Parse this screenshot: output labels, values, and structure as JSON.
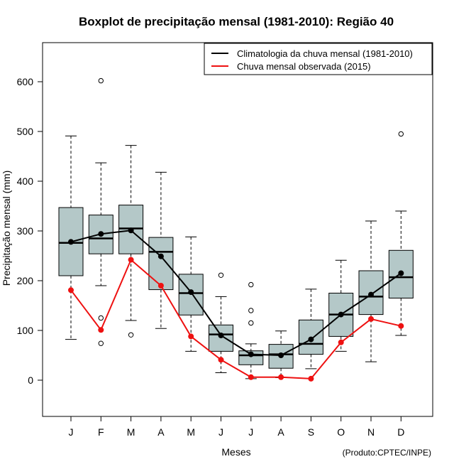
{
  "chart_data": {
    "type": "boxplot",
    "title": "Boxplot de precipitação mensal (1981-2010): Região 40",
    "xlabel": "Meses",
    "ylabel": "Precipitação mensal (mm)",
    "ylim": [
      -75,
      675
    ],
    "yticks": [
      0,
      100,
      200,
      300,
      400,
      500,
      600
    ],
    "categories": [
      "J",
      "F",
      "M",
      "A",
      "M",
      "J",
      "J",
      "A",
      "S",
      "O",
      "N",
      "D"
    ],
    "boxes": [
      {
        "whisker_low": 82,
        "q1": 210,
        "median": 276,
        "q3": 347,
        "whisker_high": 491,
        "outliers": []
      },
      {
        "whisker_low": 190,
        "q1": 254,
        "median": 285,
        "q3": 332,
        "whisker_high": 437,
        "outliers": [
          602,
          125,
          74
        ]
      },
      {
        "whisker_low": 120,
        "q1": 254,
        "median": 305,
        "q3": 352,
        "whisker_high": 472,
        "outliers": [
          91
        ]
      },
      {
        "whisker_low": 104,
        "q1": 182,
        "median": 258,
        "q3": 287,
        "whisker_high": 418,
        "outliers": []
      },
      {
        "whisker_low": 58,
        "q1": 131,
        "median": 175,
        "q3": 213,
        "whisker_high": 288,
        "outliers": []
      },
      {
        "whisker_low": 15,
        "q1": 58,
        "median": 92,
        "q3": 111,
        "whisker_high": 168,
        "outliers": [
          211
        ]
      },
      {
        "whisker_low": 3,
        "q1": 31,
        "median": 50,
        "q3": 59,
        "whisker_high": 73,
        "outliers": [
          192,
          140,
          115
        ]
      },
      {
        "whisker_low": 5,
        "q1": 24,
        "median": 52,
        "q3": 72,
        "whisker_high": 99,
        "outliers": []
      },
      {
        "whisker_low": 23,
        "q1": 52,
        "median": 73,
        "q3": 121,
        "whisker_high": 183,
        "outliers": []
      },
      {
        "whisker_low": 58,
        "q1": 88,
        "median": 132,
        "q3": 175,
        "whisker_high": 241,
        "outliers": []
      },
      {
        "whisker_low": 37,
        "q1": 132,
        "median": 168,
        "q3": 220,
        "whisker_high": 320,
        "outliers": []
      },
      {
        "whisker_low": 90,
        "q1": 165,
        "median": 207,
        "q3": 261,
        "whisker_high": 340,
        "outliers": [
          495
        ]
      }
    ],
    "series": [
      {
        "name": "Climatologia da chuva mensal (1981-2010)",
        "color": "#000000",
        "values": [
          278,
          294,
          301,
          249,
          177,
          90,
          52,
          50,
          82,
          132,
          172,
          215
        ]
      },
      {
        "name": "Chuva mensal observada (2015)",
        "color": "#ee1111",
        "values": [
          181,
          101,
          242,
          190,
          88,
          41,
          6,
          6,
          3,
          76,
          123,
          109
        ]
      }
    ],
    "box_color": "#b4c8c8",
    "legend_position": "top-right",
    "credit": "(Produto:CPTEC/INPE)"
  }
}
